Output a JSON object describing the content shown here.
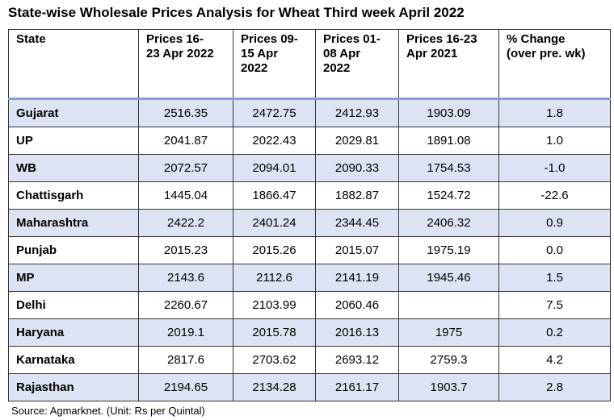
{
  "title": "State-wise Wholesale Prices Analysis for Wheat Third week April 2022",
  "columns": [
    "State",
    "Prices 16-\n23 Apr 2022",
    "Prices 09-\n15 Apr\n2022",
    "Prices 01-\n08 Apr\n2022",
    "Prices 16-23\nApr 2021",
    "% Change\n(over pre. wk)"
  ],
  "rows": [
    [
      "Gujarat",
      "2516.35",
      "2472.75",
      "2412.93",
      "1903.09",
      "1.8"
    ],
    [
      "UP",
      "2041.87",
      "2022.43",
      "2029.81",
      "1891.08",
      "1.0"
    ],
    [
      "WB",
      "2072.57",
      "2094.01",
      "2090.33",
      "1754.53",
      "-1.0"
    ],
    [
      "Chattisgarh",
      "1445.04",
      "1866.47",
      "1882.87",
      "1524.72",
      "-22.6"
    ],
    [
      "Maharashtra",
      "2422.2",
      "2401.24",
      "2344.45",
      "2406.32",
      "0.9"
    ],
    [
      "Punjab",
      "2015.23",
      "2015.26",
      "2015.07",
      "1975.19",
      "0.0"
    ],
    [
      "MP",
      "2143.6",
      "2112.6",
      "2141.19",
      "1945.46",
      "1.5"
    ],
    [
      "Delhi",
      "2260.67",
      "2103.99",
      "2060.46",
      "",
      "7.5"
    ],
    [
      "Haryana",
      "2019.1",
      "2015.78",
      "2016.13",
      "1975",
      "0.2"
    ],
    [
      "Karnataka",
      "2817.6",
      "2703.62",
      "2693.12",
      "2759.3",
      "4.2"
    ],
    [
      "Rajasthan",
      "2194.65",
      "2134.28",
      "2161.17",
      "1903.7",
      "2.8"
    ]
  ],
  "source": "Source: Agmarknet. (Unit: Rs per Quintal)",
  "colors": {
    "row_shade": "#dde3f2",
    "header_rule": "#7f9fd6"
  }
}
